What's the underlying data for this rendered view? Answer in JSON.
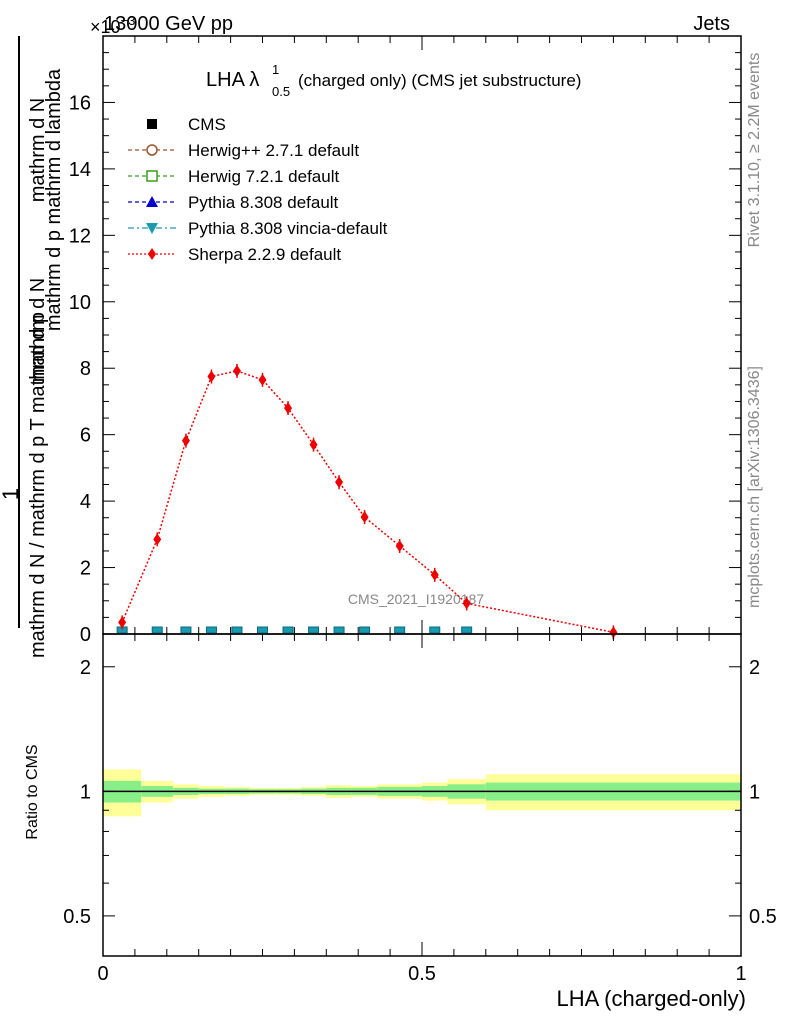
{
  "header": {
    "left": "13000 GeV pp",
    "right": "Jets",
    "multiplier": "×10^-3"
  },
  "side": {
    "rivet": "Rivet 3.1.10, ≥ 2.2M events",
    "mcplots": "mcplots.cern.ch [arXiv:1306.3436]"
  },
  "watermark": "CMS_2021_I1920187",
  "plot_title": {
    "main": "LHA λ",
    "sup": "1",
    "sub": "0.5",
    "rest": " (charged only) (CMS jet substructure)"
  },
  "ylabel": {
    "numerator": "1",
    "denominator": "mathrm d N / mathrm d p_T mathrm d p_T mathrm d lambda",
    "num_part1": "mathrm d",
    "num_part2": "N",
    "den_a": "mathrm d N / mathrm d p",
    "den_b": "mathrm d p",
    "den_c": "mathrm d p",
    "den_d": "mathrm d lambda",
    "T": "T",
    "top_line1": "mathrm d",
    "top_line2": "N",
    "top_line3": "mathrm d p",
    "top_line4": "mathrm d lambda",
    "top_line5": "mathrm d",
    "top_line6": "p",
    "left_full_top": "mathrm d N",
    "left_full_mid": "mathrm d p",
    "left_full_mid2": "mathrm d p",
    "left_full_end": "mathrm d lambda",
    "bottom_full": "mathrm d N / mathrm d p",
    "bottom_T": "T",
    "bottom_mid": "mathrm d p",
    "bottom_T2": "T",
    "bottom_end": "mathrm d lambda"
  },
  "ratio_ylabel": "Ratio to CMS",
  "xlabel": "LHA (charged-only)",
  "legend": [
    {
      "label": "CMS",
      "color": "#000000",
      "marker": "square-filled"
    },
    {
      "label": "Herwig++ 2.7.1 default",
      "color": "#a0522d",
      "marker": "circle-open"
    },
    {
      "label": "Herwig 7.2.1 default",
      "color": "#3a9a1a",
      "marker": "square-open"
    },
    {
      "label": "Pythia 8.308 default",
      "color": "#0000cc",
      "marker": "triangle-up"
    },
    {
      "label": "Pythia 8.308 vincia-default",
      "color": "#1a9ab0",
      "marker": "triangle-down"
    },
    {
      "label": "Sherpa 2.2.9 default",
      "color": "#ee0000",
      "marker": "diamond"
    }
  ],
  "chart_data": {
    "type": "line",
    "x_ticks": [
      "0",
      "0.5",
      "1"
    ],
    "y_ticks": [
      "0",
      "2",
      "4",
      "6",
      "8",
      "10",
      "12",
      "14",
      "16"
    ],
    "xlim": [
      0,
      1
    ],
    "ylim": [
      0,
      18
    ],
    "y_scale": "1e-3",
    "bin_edges": [
      0,
      0.06,
      0.11,
      0.15,
      0.19,
      0.23,
      0.27,
      0.31,
      0.35,
      0.39,
      0.43,
      0.5,
      0.54,
      0.6,
      1.0
    ],
    "series": [
      {
        "name": "Sherpa 2.2.9 default",
        "x": [
          0.03,
          0.085,
          0.13,
          0.17,
          0.21,
          0.25,
          0.29,
          0.33,
          0.37,
          0.41,
          0.465,
          0.52,
          0.57,
          0.8
        ],
        "y": [
          0.35,
          2.85,
          5.82,
          7.75,
          7.92,
          7.65,
          6.8,
          5.7,
          4.57,
          3.52,
          2.65,
          1.78,
          0.92,
          0.05
        ]
      }
    ],
    "cms_markers_x": [
      0.03,
      0.085,
      0.13,
      0.17,
      0.21,
      0.25,
      0.29,
      0.33,
      0.37,
      0.41,
      0.465,
      0.52,
      0.57
    ],
    "ratio": {
      "y_ticks": [
        "0.5",
        "1",
        "2"
      ],
      "ylim": [
        0.4,
        2.4
      ],
      "band_edges": [
        0,
        0.06,
        0.11,
        0.15,
        0.19,
        0.23,
        0.27,
        0.31,
        0.35,
        0.39,
        0.43,
        0.5,
        0.54,
        0.6,
        1.0
      ],
      "band_stat": [
        0.06,
        0.03,
        0.02,
        0.015,
        0.015,
        0.012,
        0.012,
        0.015,
        0.02,
        0.02,
        0.025,
        0.03,
        0.04,
        0.05
      ],
      "band_total": [
        0.13,
        0.06,
        0.04,
        0.03,
        0.025,
        0.02,
        0.02,
        0.025,
        0.035,
        0.03,
        0.04,
        0.05,
        0.07,
        0.1
      ]
    }
  }
}
